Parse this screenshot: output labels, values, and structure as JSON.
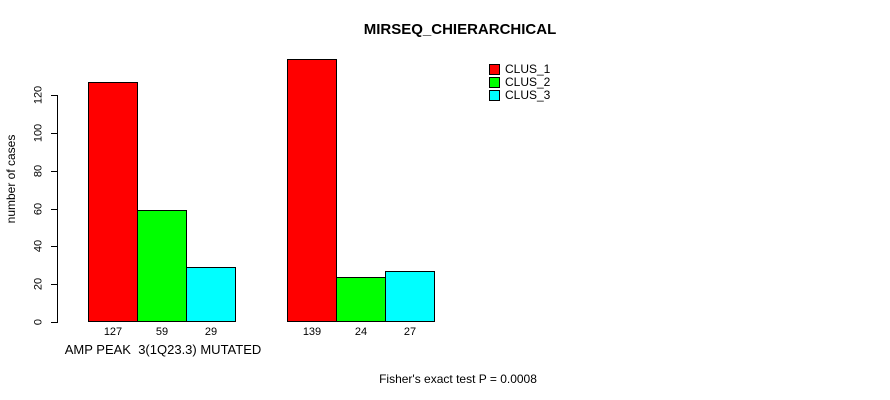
{
  "title": "MIRSEQ_CHIERARCHICAL",
  "y_axis": {
    "label": "number of cases",
    "ticks": [
      0,
      20,
      40,
      60,
      80,
      100,
      120
    ]
  },
  "x_axis": {
    "label": "AMP PEAK  3(1Q23.3) MUTATED"
  },
  "footer": "Fisher's exact test P = 0.0008",
  "legend": {
    "position": "top-right",
    "items": [
      {
        "label": "CLUS_1",
        "color": "#FF0000"
      },
      {
        "label": "CLUS_2",
        "color": "#00FF00"
      },
      {
        "label": "CLUS_3",
        "color": "#00FFFF"
      }
    ]
  },
  "chart_data": {
    "type": "bar",
    "title": "MIRSEQ_CHIERARCHICAL",
    "xlabel": "AMP PEAK  3(1Q23.3) MUTATED",
    "ylabel": "number of cases",
    "ylim": [
      0,
      140
    ],
    "yticks": [
      0,
      20,
      40,
      60,
      80,
      100,
      120
    ],
    "grid": false,
    "legend_position": "top-right",
    "categories": [
      "",
      ""
    ],
    "series": [
      {
        "name": "CLUS_1",
        "color": "#FF0000",
        "values": [
          127,
          139
        ]
      },
      {
        "name": "CLUS_2",
        "color": "#00FF00",
        "values": [
          59,
          24
        ]
      },
      {
        "name": "CLUS_3",
        "color": "#00FFFF",
        "values": [
          29,
          27
        ]
      }
    ],
    "bar_value_labels": [
      [
        127,
        59,
        29
      ],
      [
        139,
        24,
        27
      ]
    ],
    "annotation": "Fisher's exact test P = 0.0008"
  }
}
